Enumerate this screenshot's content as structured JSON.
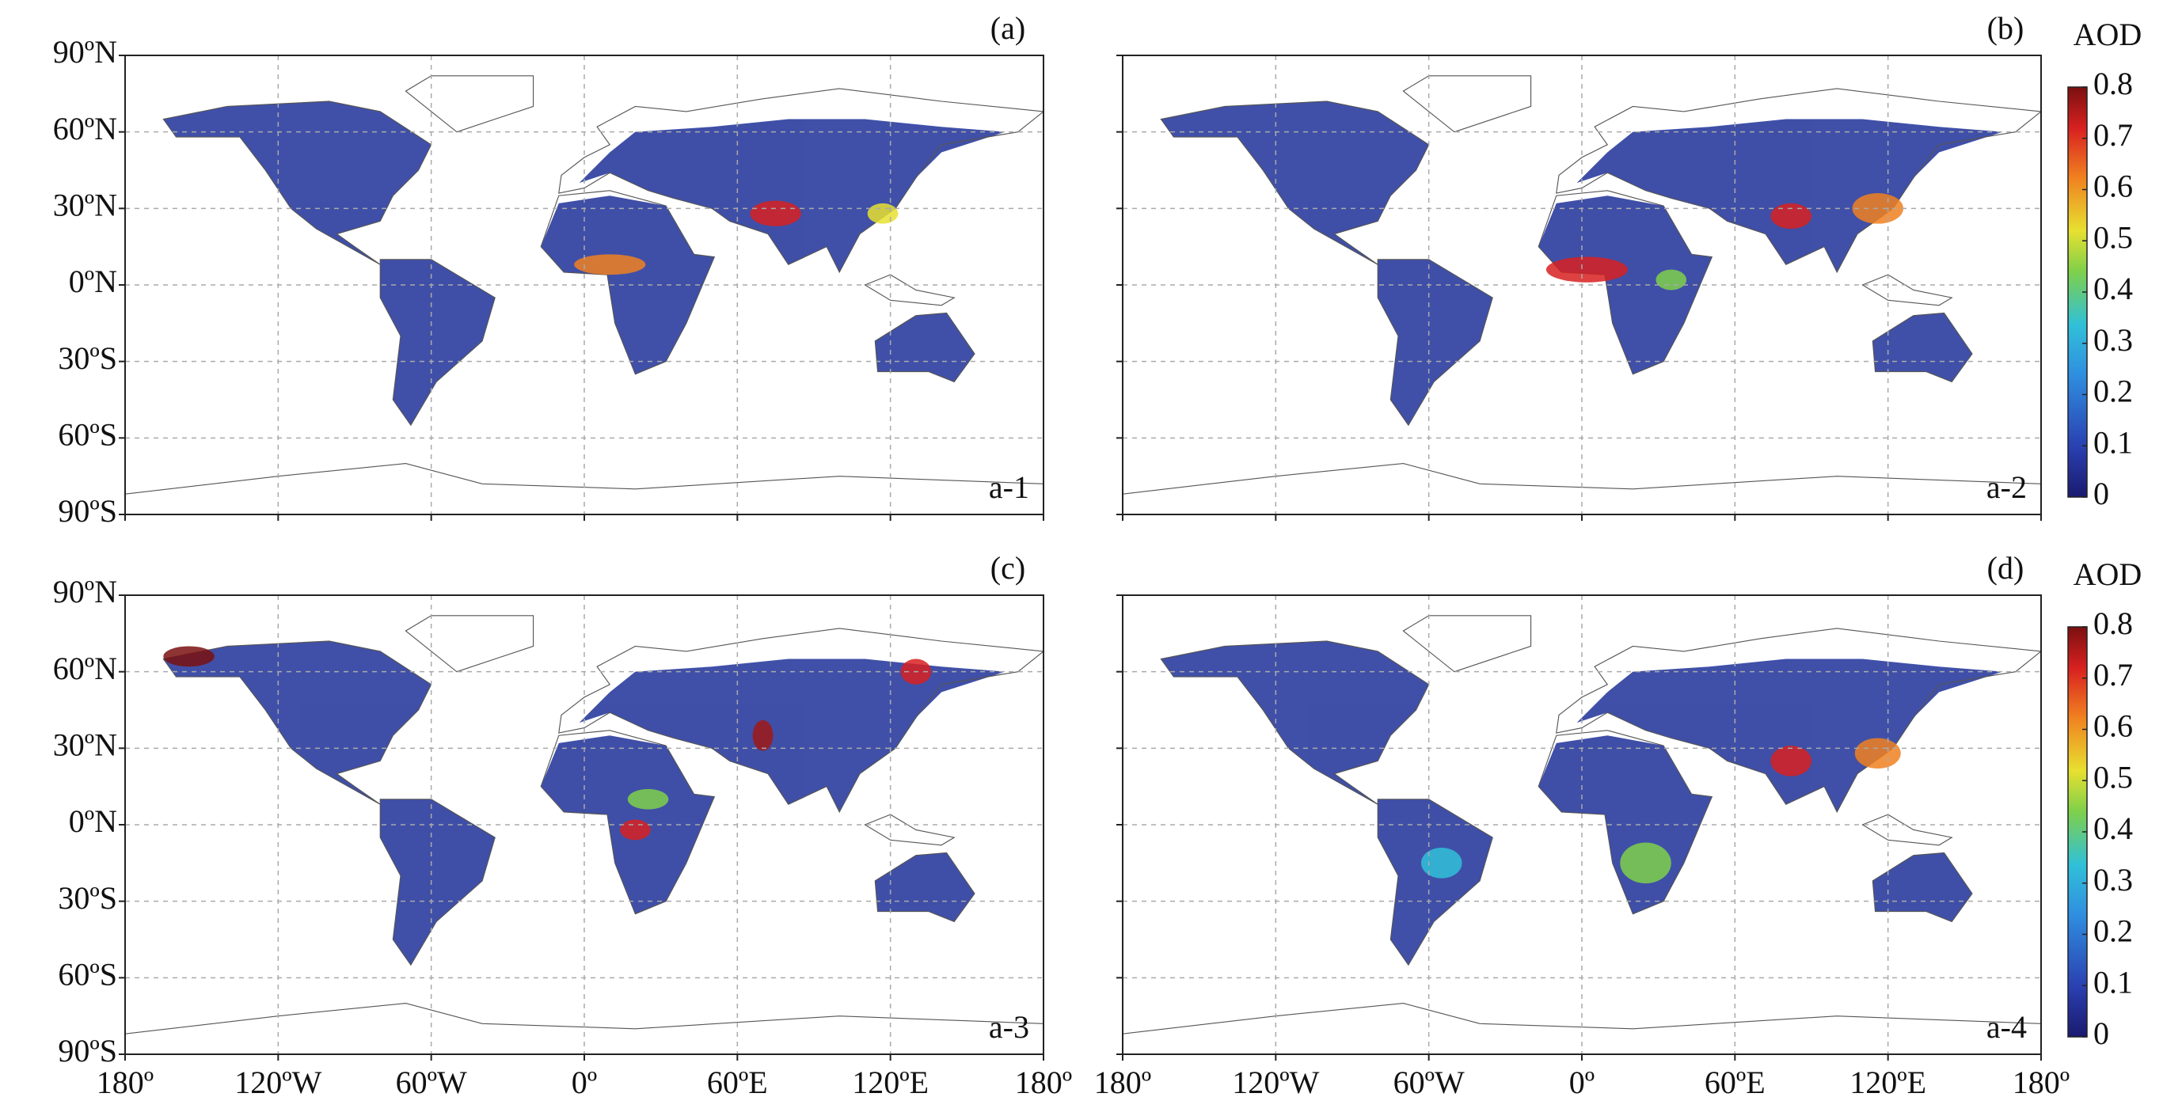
{
  "panels": [
    {
      "label": "(a)",
      "sublabel": "a-1"
    },
    {
      "label": "(b)",
      "sublabel": "a-2"
    },
    {
      "label": "(c)",
      "sublabel": "a-3"
    },
    {
      "label": "(d)",
      "sublabel": "a-4"
    }
  ],
  "lat_ticks": [
    {
      "value": 90,
      "label": "90ºN"
    },
    {
      "value": 60,
      "label": "60ºN"
    },
    {
      "value": 30,
      "label": "30ºN"
    },
    {
      "value": 0,
      "label": "0ºN"
    },
    {
      "value": -30,
      "label": "30ºS"
    },
    {
      "value": -60,
      "label": "60ºS"
    },
    {
      "value": -90,
      "label": "90ºS"
    }
  ],
  "lon_ticks": [
    {
      "value": -180,
      "label": "180º"
    },
    {
      "value": -120,
      "label": "120ºW"
    },
    {
      "value": -60,
      "label": "60ºW"
    },
    {
      "value": 0,
      "label": "0º"
    },
    {
      "value": 60,
      "label": "60ºE"
    },
    {
      "value": 120,
      "label": "120ºE"
    },
    {
      "value": 180,
      "label": "180º"
    }
  ],
  "colorbar": {
    "title": "AOD",
    "range": [
      0,
      0.8
    ],
    "ticks": [
      0,
      0.1,
      0.2,
      0.3,
      0.4,
      0.5,
      0.6,
      0.7,
      0.8
    ]
  }
}
